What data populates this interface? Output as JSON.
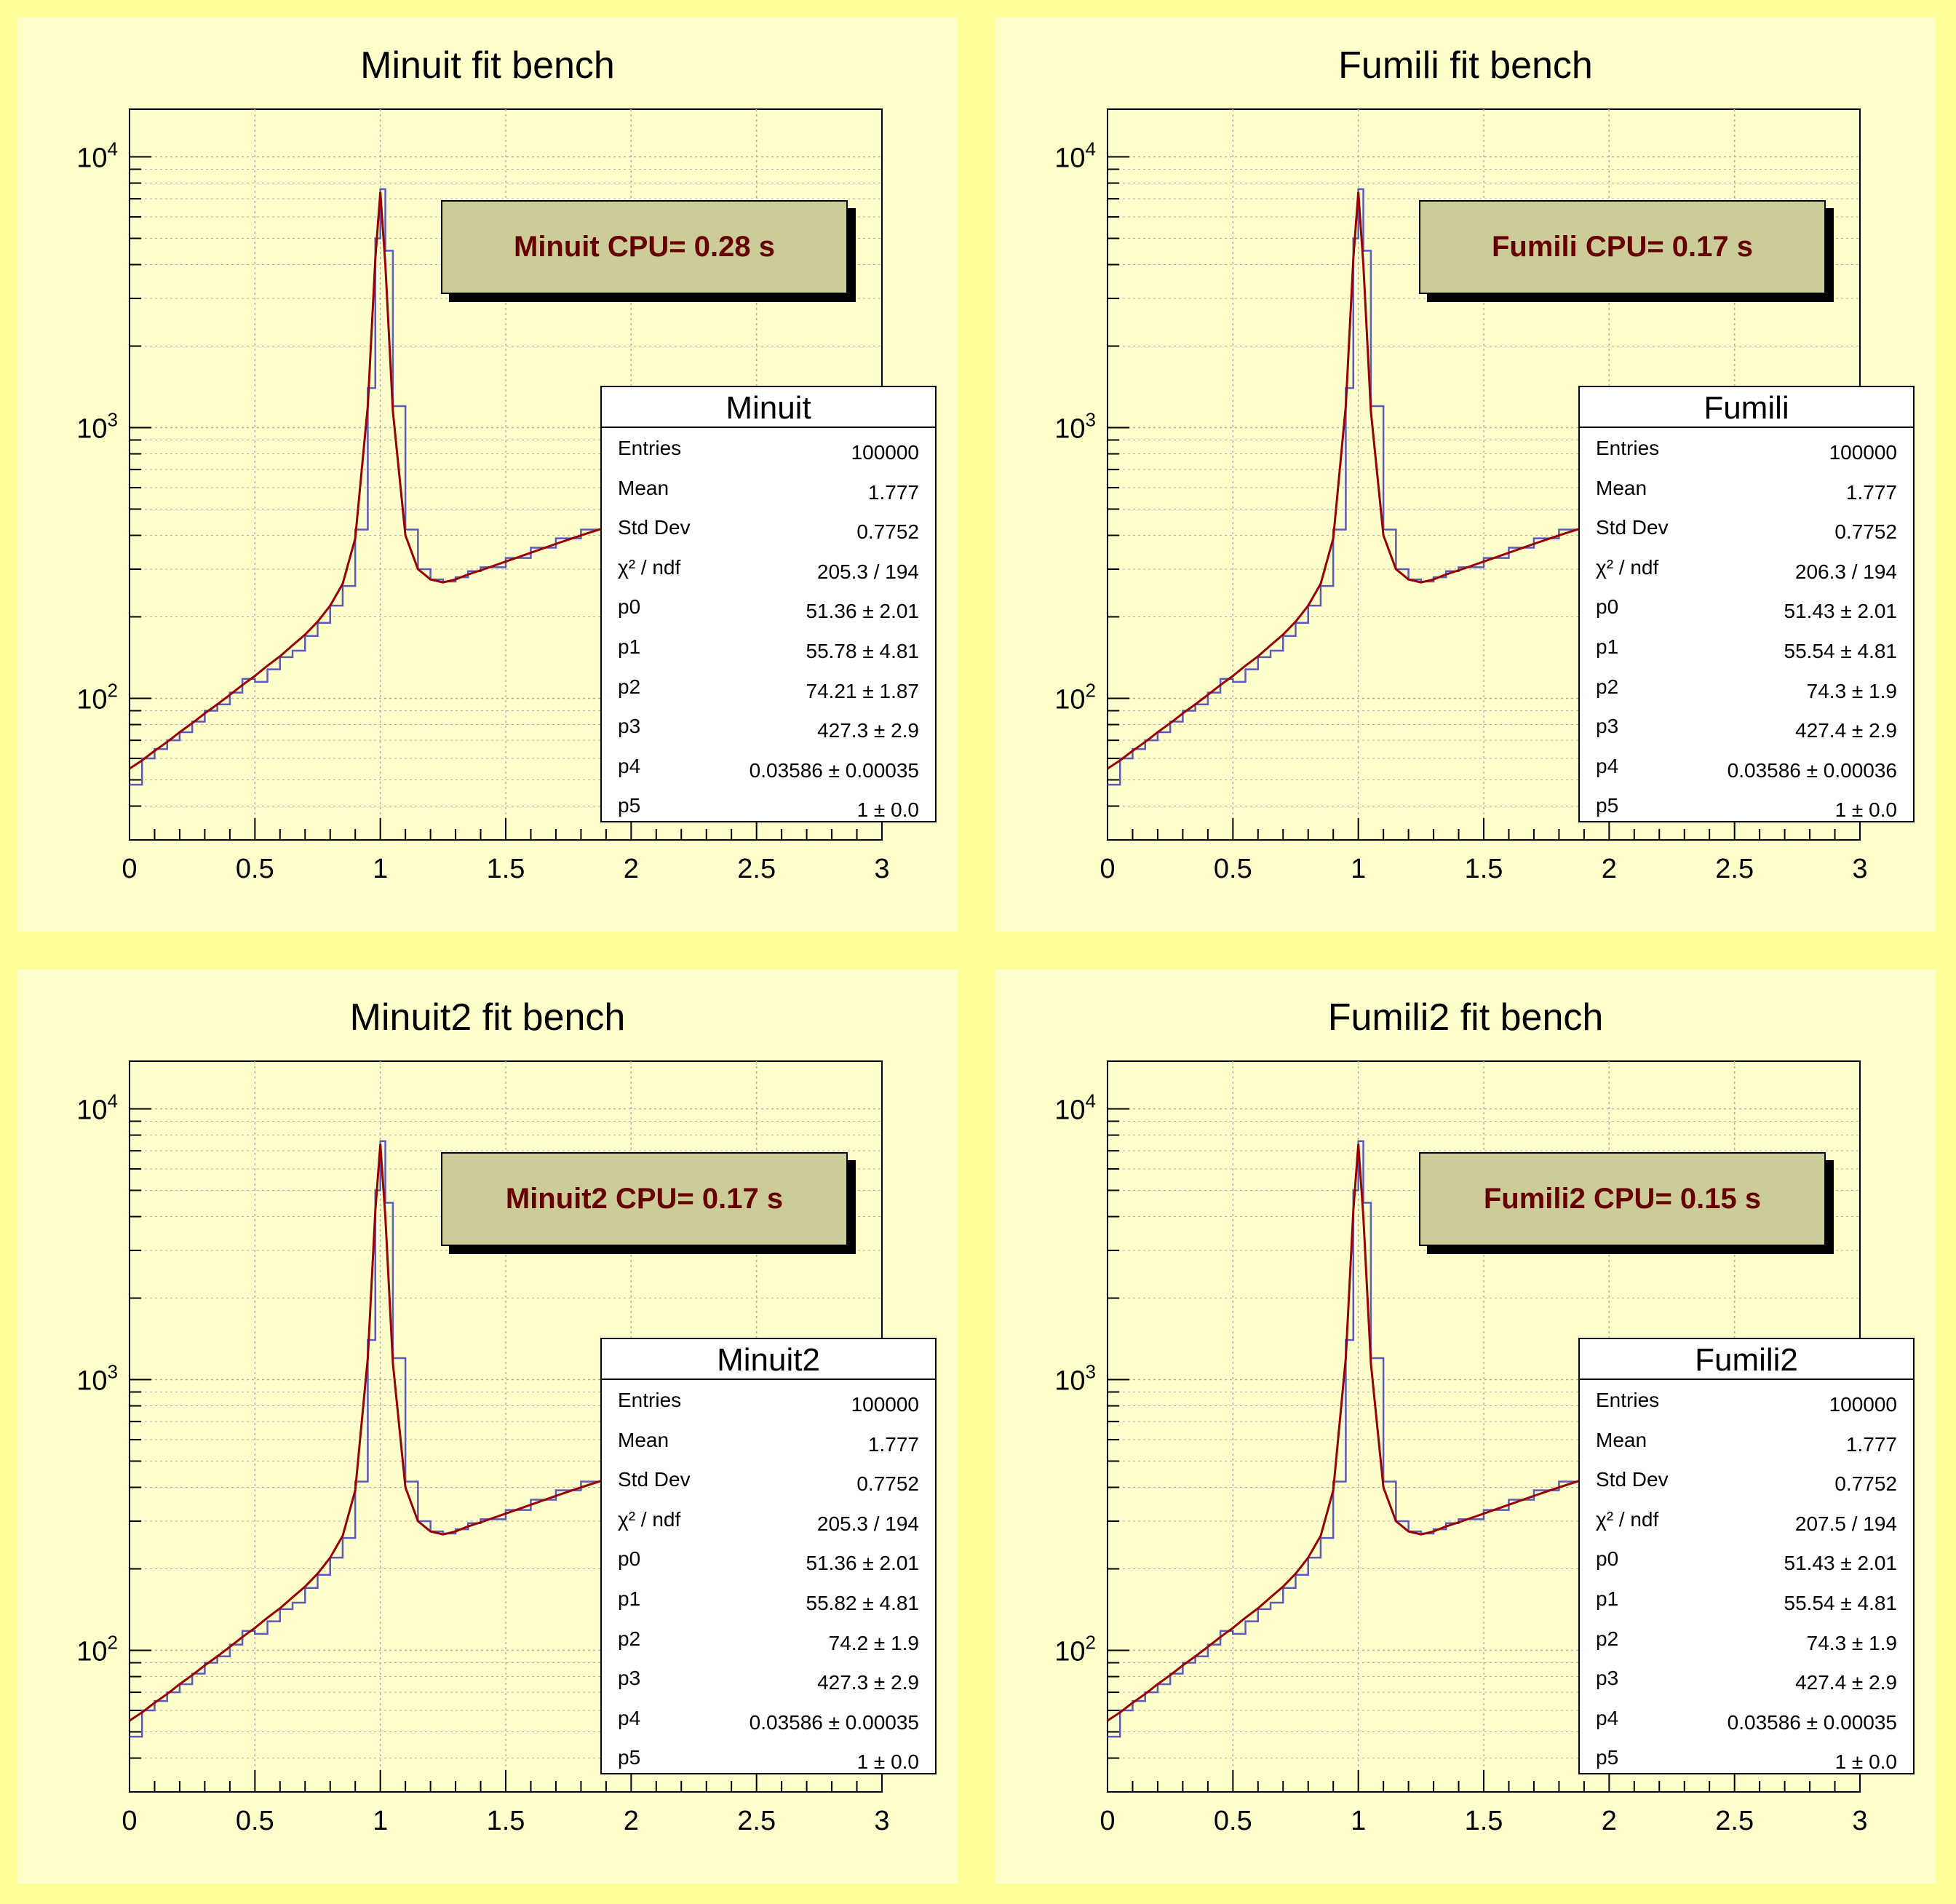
{
  "colors": {
    "canvas_bg": "#ffff99",
    "pad_bg": "#ffffcc",
    "histogram": "#5c5cb8",
    "fit_curve": "#990000",
    "cpu_box_fill": "#cccc99",
    "cpu_text": "#660000",
    "grid": "#b0b0b0"
  },
  "chart_data": [
    {
      "type": "line",
      "title": "Minuit fit bench",
      "cpu_label": "Minuit CPU= 0.28 s",
      "xlim": [
        0,
        3
      ],
      "ylim": [
        30,
        15000
      ],
      "y_scale": "log",
      "grid": true,
      "x_ticks": [
        "0",
        "0.5",
        "1",
        "1.5",
        "2",
        "2.5",
        "3"
      ],
      "y_ticks": [
        {
          "base": "10",
          "exp": "2"
        },
        {
          "base": "10",
          "exp": "3"
        },
        {
          "base": "10",
          "exp": "4"
        }
      ],
      "series": [
        {
          "name": "histogram",
          "x": [
            0.0,
            0.05,
            0.1,
            0.15,
            0.2,
            0.25,
            0.3,
            0.35,
            0.4,
            0.45,
            0.5,
            0.55,
            0.6,
            0.65,
            0.7,
            0.75,
            0.8,
            0.85,
            0.9,
            0.95,
            0.98,
            1.0,
            1.02,
            1.05,
            1.1,
            1.15,
            1.2,
            1.25,
            1.3,
            1.35,
            1.4,
            1.5,
            1.6,
            1.7,
            1.8,
            1.9,
            1.95
          ],
          "values": [
            48,
            60,
            65,
            70,
            75,
            82,
            90,
            95,
            105,
            118,
            115,
            128,
            142,
            150,
            170,
            190,
            220,
            260,
            420,
            1400,
            5000,
            7600,
            4500,
            1200,
            420,
            300,
            275,
            270,
            280,
            295,
            305,
            330,
            360,
            390,
            420,
            445,
            460
          ]
        },
        {
          "name": "fit",
          "x": [
            0.0,
            0.05,
            0.1,
            0.15,
            0.2,
            0.25,
            0.3,
            0.35,
            0.4,
            0.45,
            0.5,
            0.55,
            0.6,
            0.65,
            0.7,
            0.75,
            0.8,
            0.85,
            0.9,
            0.95,
            0.98,
            1.0,
            1.02,
            1.05,
            1.1,
            1.15,
            1.2,
            1.25,
            1.3,
            1.35,
            1.4,
            1.5,
            1.6,
            1.7,
            1.8,
            1.9,
            1.95
          ],
          "values": [
            55,
            59,
            64,
            69,
            75,
            81,
            88,
            95,
            103,
            112,
            121,
            132,
            143,
            157,
            172,
            192,
            220,
            265,
            390,
            1200,
            4200,
            7400,
            4000,
            1150,
            400,
            300,
            275,
            268,
            275,
            287,
            297,
            320,
            345,
            372,
            400,
            428,
            442
          ]
        }
      ],
      "stats": {
        "title": "Minuit",
        "rows": [
          {
            "label": "Entries",
            "value": "100000"
          },
          {
            "label": "Mean",
            "value": "1.777"
          },
          {
            "label": "Std Dev",
            "value": "0.7752"
          },
          {
            "label": "χ² / ndf",
            "value": "205.3 / 194"
          },
          {
            "label": "p0",
            "value": "51.36 ± 2.01"
          },
          {
            "label": "p1",
            "value": "55.78 ± 4.81"
          },
          {
            "label": "p2",
            "value": "74.21 ± 1.87"
          },
          {
            "label": "p3",
            "value": "427.3 ± 2.9"
          },
          {
            "label": "p4",
            "value": "0.03586 ± 0.00035"
          },
          {
            "label": "p5",
            "value": "1 ± 0.0"
          }
        ]
      }
    },
    {
      "type": "line",
      "title": "Fumili fit bench",
      "cpu_label": "Fumili CPU= 0.17 s",
      "xlim": [
        0,
        3
      ],
      "ylim": [
        30,
        15000
      ],
      "y_scale": "log",
      "grid": true,
      "x_ticks": [
        "0",
        "0.5",
        "1",
        "1.5",
        "2",
        "2.5",
        "3"
      ],
      "y_ticks": [
        {
          "base": "10",
          "exp": "2"
        },
        {
          "base": "10",
          "exp": "3"
        },
        {
          "base": "10",
          "exp": "4"
        }
      ],
      "series": [
        {
          "name": "histogram",
          "x": [
            0.0,
            0.05,
            0.1,
            0.15,
            0.2,
            0.25,
            0.3,
            0.35,
            0.4,
            0.45,
            0.5,
            0.55,
            0.6,
            0.65,
            0.7,
            0.75,
            0.8,
            0.85,
            0.9,
            0.95,
            0.98,
            1.0,
            1.02,
            1.05,
            1.1,
            1.15,
            1.2,
            1.25,
            1.3,
            1.35,
            1.4,
            1.5,
            1.6,
            1.7,
            1.8,
            1.9,
            1.95
          ],
          "values": [
            48,
            60,
            65,
            70,
            75,
            82,
            90,
            95,
            105,
            118,
            115,
            128,
            142,
            150,
            170,
            190,
            220,
            260,
            420,
            1400,
            5000,
            7600,
            4500,
            1200,
            420,
            300,
            275,
            270,
            280,
            295,
            305,
            330,
            360,
            390,
            420,
            445,
            460
          ]
        },
        {
          "name": "fit",
          "x": [
            0.0,
            0.05,
            0.1,
            0.15,
            0.2,
            0.25,
            0.3,
            0.35,
            0.4,
            0.45,
            0.5,
            0.55,
            0.6,
            0.65,
            0.7,
            0.75,
            0.8,
            0.85,
            0.9,
            0.95,
            0.98,
            1.0,
            1.02,
            1.05,
            1.1,
            1.15,
            1.2,
            1.25,
            1.3,
            1.35,
            1.4,
            1.5,
            1.6,
            1.7,
            1.8,
            1.9,
            1.95
          ],
          "values": [
            55,
            59,
            64,
            69,
            75,
            81,
            88,
            95,
            103,
            112,
            121,
            132,
            143,
            157,
            172,
            192,
            220,
            265,
            390,
            1200,
            4200,
            7400,
            4000,
            1150,
            400,
            300,
            275,
            268,
            275,
            287,
            297,
            320,
            345,
            372,
            400,
            428,
            442
          ]
        }
      ],
      "stats": {
        "title": "Fumili",
        "rows": [
          {
            "label": "Entries",
            "value": "100000"
          },
          {
            "label": "Mean",
            "value": "1.777"
          },
          {
            "label": "Std Dev",
            "value": "0.7752"
          },
          {
            "label": "χ² / ndf",
            "value": "206.3 / 194"
          },
          {
            "label": "p0",
            "value": "51.43 ± 2.01"
          },
          {
            "label": "p1",
            "value": "55.54 ± 4.81"
          },
          {
            "label": "p2",
            "value": "74.3 ± 1.9"
          },
          {
            "label": "p3",
            "value": "427.4 ± 2.9"
          },
          {
            "label": "p4",
            "value": "0.03586 ± 0.00036"
          },
          {
            "label": "p5",
            "value": "1 ± 0.0"
          }
        ]
      }
    },
    {
      "type": "line",
      "title": "Minuit2 fit bench",
      "cpu_label": "Minuit2 CPU= 0.17 s",
      "xlim": [
        0,
        3
      ],
      "ylim": [
        30,
        15000
      ],
      "y_scale": "log",
      "grid": true,
      "x_ticks": [
        "0",
        "0.5",
        "1",
        "1.5",
        "2",
        "2.5",
        "3"
      ],
      "y_ticks": [
        {
          "base": "10",
          "exp": "2"
        },
        {
          "base": "10",
          "exp": "3"
        },
        {
          "base": "10",
          "exp": "4"
        }
      ],
      "series": [
        {
          "name": "histogram",
          "x": [
            0.0,
            0.05,
            0.1,
            0.15,
            0.2,
            0.25,
            0.3,
            0.35,
            0.4,
            0.45,
            0.5,
            0.55,
            0.6,
            0.65,
            0.7,
            0.75,
            0.8,
            0.85,
            0.9,
            0.95,
            0.98,
            1.0,
            1.02,
            1.05,
            1.1,
            1.15,
            1.2,
            1.25,
            1.3,
            1.35,
            1.4,
            1.5,
            1.6,
            1.7,
            1.8,
            1.9,
            1.95
          ],
          "values": [
            48,
            60,
            65,
            70,
            75,
            82,
            90,
            95,
            105,
            118,
            115,
            128,
            142,
            150,
            170,
            190,
            220,
            260,
            420,
            1400,
            5000,
            7600,
            4500,
            1200,
            420,
            300,
            275,
            270,
            280,
            295,
            305,
            330,
            360,
            390,
            420,
            445,
            460
          ]
        },
        {
          "name": "fit",
          "x": [
            0.0,
            0.05,
            0.1,
            0.15,
            0.2,
            0.25,
            0.3,
            0.35,
            0.4,
            0.45,
            0.5,
            0.55,
            0.6,
            0.65,
            0.7,
            0.75,
            0.8,
            0.85,
            0.9,
            0.95,
            0.98,
            1.0,
            1.02,
            1.05,
            1.1,
            1.15,
            1.2,
            1.25,
            1.3,
            1.35,
            1.4,
            1.5,
            1.6,
            1.7,
            1.8,
            1.9,
            1.95
          ],
          "values": [
            55,
            59,
            64,
            69,
            75,
            81,
            88,
            95,
            103,
            112,
            121,
            132,
            143,
            157,
            172,
            192,
            220,
            265,
            390,
            1200,
            4200,
            7400,
            4000,
            1150,
            400,
            300,
            275,
            268,
            275,
            287,
            297,
            320,
            345,
            372,
            400,
            428,
            442
          ]
        }
      ],
      "stats": {
        "title": "Minuit2",
        "rows": [
          {
            "label": "Entries",
            "value": "100000"
          },
          {
            "label": "Mean",
            "value": "1.777"
          },
          {
            "label": "Std Dev",
            "value": "0.7752"
          },
          {
            "label": "χ² / ndf",
            "value": "205.3 / 194"
          },
          {
            "label": "p0",
            "value": "51.36 ± 2.01"
          },
          {
            "label": "p1",
            "value": "55.82 ± 4.81"
          },
          {
            "label": "p2",
            "value": "74.2 ± 1.9"
          },
          {
            "label": "p3",
            "value": "427.3 ± 2.9"
          },
          {
            "label": "p4",
            "value": "0.03586 ± 0.00035"
          },
          {
            "label": "p5",
            "value": "1 ± 0.0"
          }
        ]
      }
    },
    {
      "type": "line",
      "title": "Fumili2 fit bench",
      "cpu_label": "Fumili2 CPU= 0.15 s",
      "xlim": [
        0,
        3
      ],
      "ylim": [
        30,
        15000
      ],
      "y_scale": "log",
      "grid": true,
      "x_ticks": [
        "0",
        "0.5",
        "1",
        "1.5",
        "2",
        "2.5",
        "3"
      ],
      "y_ticks": [
        {
          "base": "10",
          "exp": "2"
        },
        {
          "base": "10",
          "exp": "3"
        },
        {
          "base": "10",
          "exp": "4"
        }
      ],
      "series": [
        {
          "name": "histogram",
          "x": [
            0.0,
            0.05,
            0.1,
            0.15,
            0.2,
            0.25,
            0.3,
            0.35,
            0.4,
            0.45,
            0.5,
            0.55,
            0.6,
            0.65,
            0.7,
            0.75,
            0.8,
            0.85,
            0.9,
            0.95,
            0.98,
            1.0,
            1.02,
            1.05,
            1.1,
            1.15,
            1.2,
            1.25,
            1.3,
            1.35,
            1.4,
            1.5,
            1.6,
            1.7,
            1.8,
            1.9,
            1.95
          ],
          "values": [
            48,
            60,
            65,
            70,
            75,
            82,
            90,
            95,
            105,
            118,
            115,
            128,
            142,
            150,
            170,
            190,
            220,
            260,
            420,
            1400,
            5000,
            7600,
            4500,
            1200,
            420,
            300,
            275,
            270,
            280,
            295,
            305,
            330,
            360,
            390,
            420,
            445,
            460
          ]
        },
        {
          "name": "fit",
          "x": [
            0.0,
            0.05,
            0.1,
            0.15,
            0.2,
            0.25,
            0.3,
            0.35,
            0.4,
            0.45,
            0.5,
            0.55,
            0.6,
            0.65,
            0.7,
            0.75,
            0.8,
            0.85,
            0.9,
            0.95,
            0.98,
            1.0,
            1.02,
            1.05,
            1.1,
            1.15,
            1.2,
            1.25,
            1.3,
            1.35,
            1.4,
            1.5,
            1.6,
            1.7,
            1.8,
            1.9,
            1.95
          ],
          "values": [
            55,
            59,
            64,
            69,
            75,
            81,
            88,
            95,
            103,
            112,
            121,
            132,
            143,
            157,
            172,
            192,
            220,
            265,
            390,
            1200,
            4200,
            7400,
            4000,
            1150,
            400,
            300,
            275,
            268,
            275,
            287,
            297,
            320,
            345,
            372,
            400,
            428,
            442
          ]
        }
      ],
      "stats": {
        "title": "Fumili2",
        "rows": [
          {
            "label": "Entries",
            "value": "100000"
          },
          {
            "label": "Mean",
            "value": "1.777"
          },
          {
            "label": "Std Dev",
            "value": "0.7752"
          },
          {
            "label": "χ² / ndf",
            "value": "207.5 / 194"
          },
          {
            "label": "p0",
            "value": "51.43 ± 2.01"
          },
          {
            "label": "p1",
            "value": "55.54 ± 4.81"
          },
          {
            "label": "p2",
            "value": "74.3 ± 1.9"
          },
          {
            "label": "p3",
            "value": "427.4 ± 2.9"
          },
          {
            "label": "p4",
            "value": "0.03586 ± 0.00035"
          },
          {
            "label": "p5",
            "value": "1 ± 0.0"
          }
        ]
      }
    }
  ]
}
